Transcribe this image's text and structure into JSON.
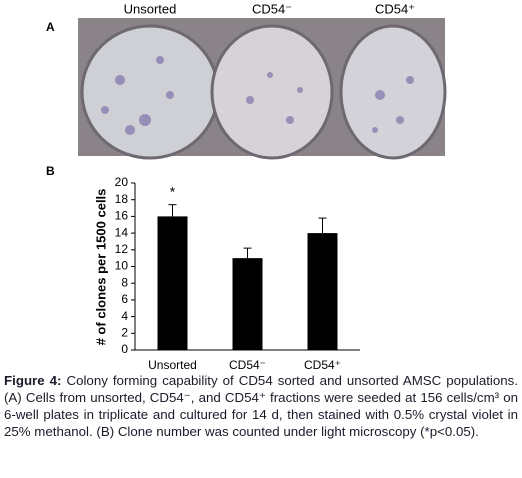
{
  "panel_a": {
    "label": "A",
    "photo_labels": [
      "Unsorted",
      "CD54⁻",
      "CD54⁺"
    ]
  },
  "panel_b": {
    "label": "B"
  },
  "chart_data": {
    "type": "bar",
    "ylabel": "# of clones per 1500 cells",
    "categories": [
      "Unsorted",
      "CD54⁻",
      "CD54⁺"
    ],
    "values": [
      16,
      11,
      14
    ],
    "errors": [
      1.4,
      1.2,
      1.8
    ],
    "color": "#000000",
    "ylim": [
      0,
      20
    ],
    "yticks": [
      0,
      2,
      4,
      6,
      8,
      10,
      12,
      14,
      16,
      18,
      20
    ],
    "annotations": [
      {
        "category": "Unsorted",
        "text": "*"
      }
    ]
  },
  "caption": {
    "label": "Figure 4:",
    "text": " Colony forming capability of CD54 sorted and unsorted AMSC populations. (A) Cells from unsorted, CD54⁻, and CD54⁺ fractions were seeded at 156 cells/cm³ on 6-well plates in triplicate and cultured for 14 d, then stained with 0.5% crystal violet in 25% methanol. (B) Clone number was counted under light microscopy (*p<0.05)."
  }
}
